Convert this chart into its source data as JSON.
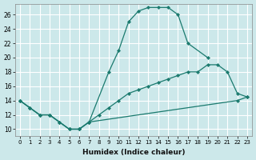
{
  "xlabel": "Humidex (Indice chaleur)",
  "bg_color": "#cce8ea",
  "grid_color": "#ffffff",
  "line_color": "#1a7a6e",
  "xlim": [
    -0.5,
    23.5
  ],
  "ylim": [
    9.0,
    27.5
  ],
  "xticks": [
    0,
    1,
    2,
    3,
    4,
    5,
    6,
    7,
    8,
    9,
    10,
    11,
    12,
    13,
    14,
    15,
    16,
    17,
    18,
    19,
    20,
    21,
    22,
    23
  ],
  "yticks": [
    10,
    12,
    14,
    16,
    18,
    20,
    22,
    24,
    26
  ],
  "series": [
    {
      "x": [
        0,
        1,
        2,
        3,
        4,
        5,
        6,
        7,
        9,
        10,
        11,
        12,
        13,
        14,
        15,
        16,
        17,
        19
      ],
      "y": [
        14,
        13,
        12,
        12,
        11,
        10,
        10,
        11,
        18,
        21,
        25,
        26.5,
        27,
        27,
        27,
        26,
        22,
        20
      ]
    },
    {
      "x": [
        0,
        1,
        2,
        3,
        4,
        5,
        6,
        7,
        8,
        9,
        10,
        11,
        12,
        13,
        14,
        15,
        16,
        17,
        18,
        19,
        20,
        21,
        22,
        23
      ],
      "y": [
        14,
        13,
        12,
        12,
        11,
        10,
        10,
        11,
        12,
        13,
        14,
        15,
        15.5,
        16,
        16.5,
        17,
        17.5,
        18,
        18,
        19,
        19,
        18,
        15,
        14.5
      ]
    },
    {
      "x": [
        0,
        1,
        2,
        3,
        4,
        5,
        6,
        7,
        22,
        23
      ],
      "y": [
        14,
        13,
        12,
        12,
        11,
        10,
        10,
        11,
        14,
        14.5
      ]
    }
  ]
}
